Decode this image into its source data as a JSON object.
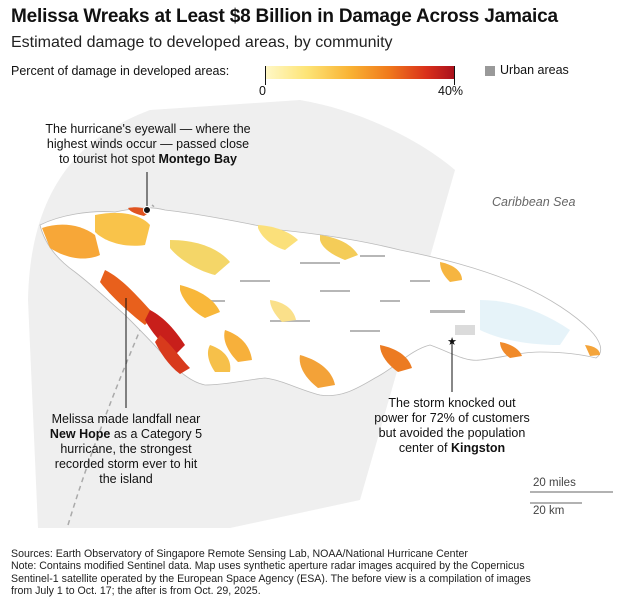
{
  "header": {
    "title": "Melissa Wreaks at Least $8 Billion in Damage Across Jamaica",
    "subtitle": "Estimated damage to developed areas, by community"
  },
  "legend": {
    "label": "Percent of damage in developed areas:",
    "min_label": "0",
    "max_label": "40%",
    "min_value": 0,
    "max_value": 40,
    "color_ramp": [
      "#fff8c8",
      "#fde476",
      "#f9b233",
      "#f07a1c",
      "#d9301b",
      "#a8101c"
    ],
    "urban_label": "Urban areas",
    "urban_color": "#999999"
  },
  "map": {
    "sea_label": "Caribbean Sea",
    "land_color": "#ffffff",
    "track_band_color": "#eeeeee",
    "annotations": {
      "eyewall": {
        "line1": "The hurricane's eyewall — where the",
        "line2": "highest winds occur — passed close",
        "line3_prefix": "to tourist hot spot ",
        "line3_bold": "Montego Bay"
      },
      "landfall": {
        "line1": "Melissa made landfall near",
        "line2_bold": "New Hope",
        "line2_suffix": " as a Category 5",
        "line3": "hurricane, the strongest",
        "line4": "recorded storm ever to hit",
        "line5": "the island"
      },
      "kingston": {
        "line1": "The storm knocked out",
        "line2": "power for 72% of customers",
        "line3": "but avoided the population",
        "line4_prefix": "center of ",
        "line4_bold": "Kingston"
      }
    },
    "scale": {
      "miles_label": "20 miles",
      "km_label": "20 km"
    }
  },
  "footer": {
    "sources": "Sources: Earth Observatory of Singapore Remote Sensing Lab, NOAA/National Hurricane Center",
    "note1": "Note: Contains modified Sentinel data. Map uses synthetic aperture radar images acquired by the Copernicus",
    "note2": "Sentinel-1 satellite operated by the European Space Agency (ESA). The before view is a compilation of images",
    "note3": "from July 1 to Oct. 17; the after is from Oct. 29, 2025."
  }
}
